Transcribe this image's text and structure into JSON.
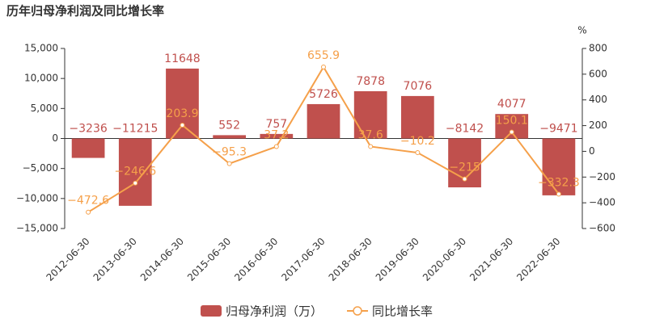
{
  "chart_data": {
    "type": "bar_line",
    "title": "历年归母净利润及同比增长率",
    "y2_label": "%",
    "categories": [
      "2012-06-30",
      "2013-06-30",
      "2014-06-30",
      "2015-06-30",
      "2016-06-30",
      "2017-06-30",
      "2018-06-30",
      "2019-06-30",
      "2020-06-30",
      "2021-06-30",
      "2022-06-30"
    ],
    "series": [
      {
        "name": "归母净利润（万）",
        "type": "bar",
        "color": "#c0504d",
        "values": [
          -3236,
          -11215,
          11648,
          552,
          757,
          5726,
          7878,
          7076,
          -8142,
          4077,
          -9471
        ],
        "value_labels": [
          "−3236",
          "−11215",
          "11648",
          "552",
          "757",
          "5726",
          "7878",
          "7076",
          "−8142",
          "4077",
          "−9471"
        ]
      },
      {
        "name": "同比增长率",
        "type": "line",
        "axis": "y2",
        "color": "#f5a04a",
        "values": [
          -472.6,
          -246.6,
          203.9,
          -95.3,
          37.2,
          655.9,
          37.6,
          -10.2,
          -215,
          150.1,
          -332.3
        ],
        "value_labels": [
          "−472.6",
          "−246.6",
          "203.9",
          "−95.3",
          "37.2",
          "655.9",
          "37.6",
          "−10.2",
          "−215",
          "150.1",
          "−332.3"
        ]
      }
    ],
    "ylim": [
      -15000,
      15000
    ],
    "yticks": [
      {
        "value": -15000,
        "label": "−15,000"
      },
      {
        "value": -10000,
        "label": "−10,000"
      },
      {
        "value": -5000,
        "label": "−5,000"
      },
      0,
      {
        "value": 5000,
        "label": "5,000"
      },
      {
        "value": 10000,
        "label": "10,000"
      },
      {
        "value": 15000,
        "label": "15,000"
      }
    ],
    "y2lim": [
      -600,
      800
    ],
    "y2ticks": [
      {
        "value": -600,
        "label": "−600"
      },
      {
        "value": -400,
        "label": "−400"
      },
      {
        "value": -200,
        "label": "−200"
      },
      0,
      200,
      400,
      600,
      800
    ],
    "grid": false
  }
}
